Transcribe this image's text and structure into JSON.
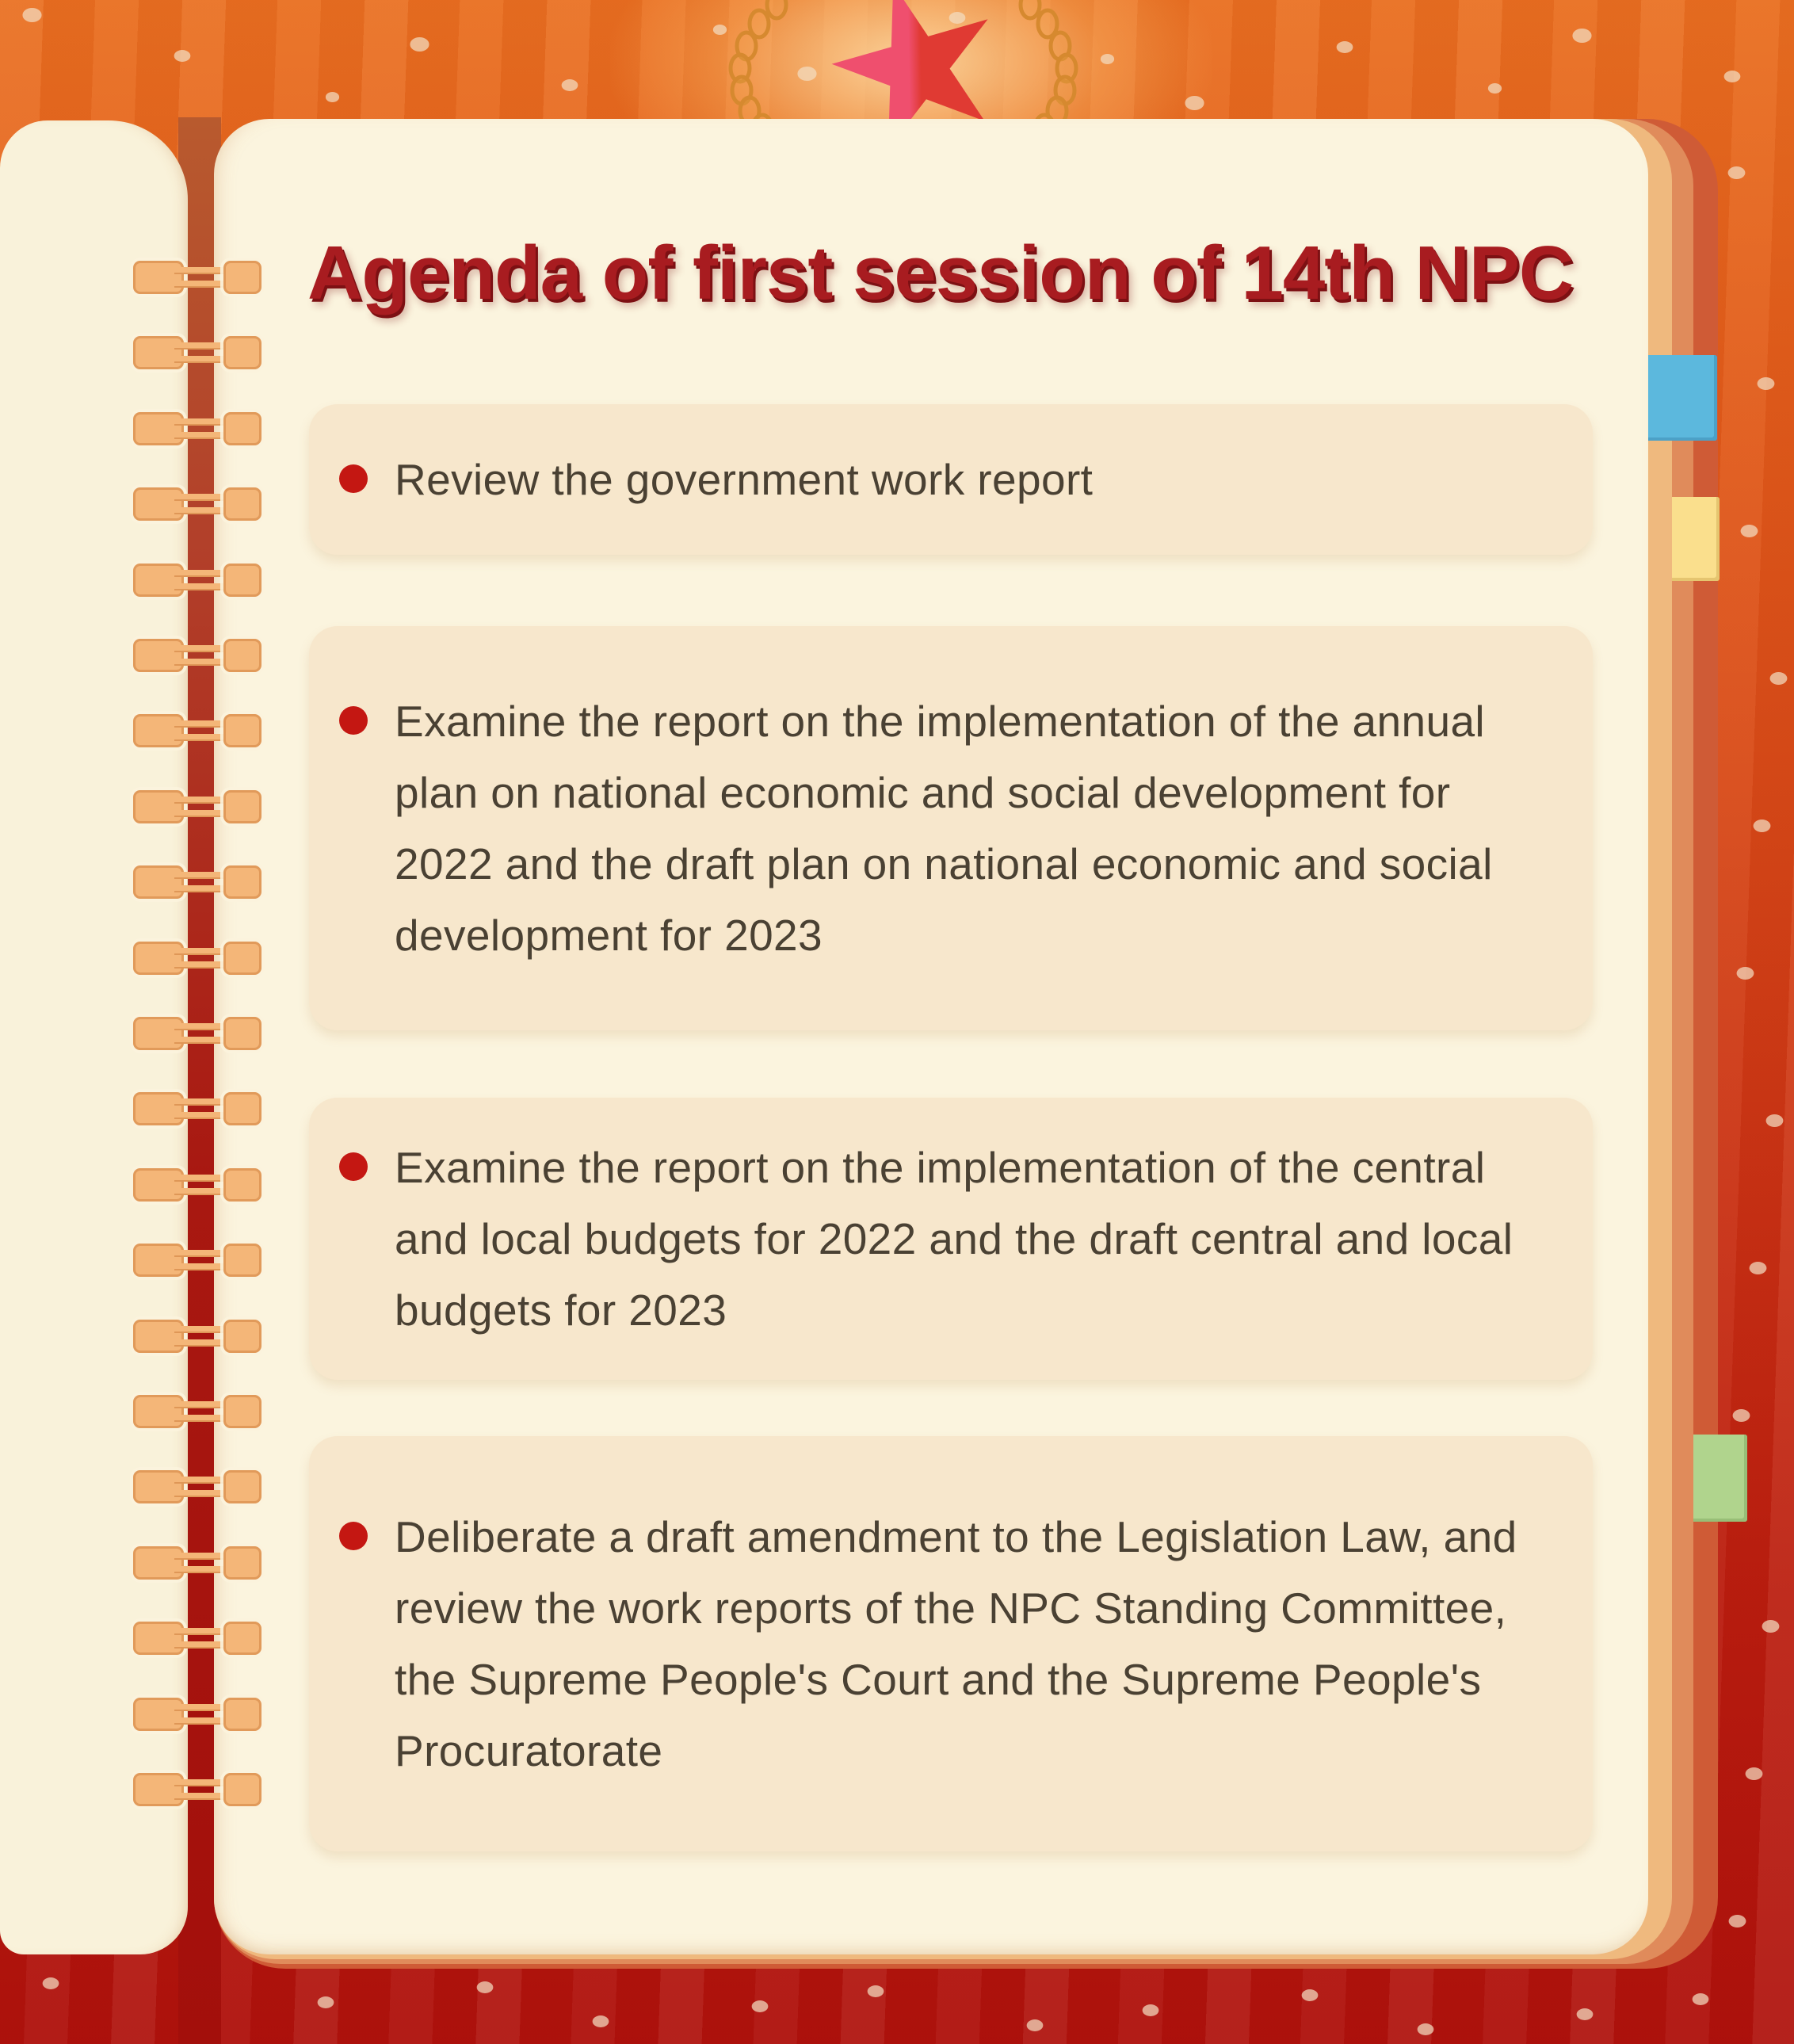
{
  "infographic": {
    "title": "Agenda of first session of 14th NPC",
    "agenda_items": [
      "Review the government work report",
      "Examine the report on the implementation of the annual plan on national economic and social development for 2022 and the draft plan on national economic and social development for 2023",
      "Examine the report on the implementation of the central and local budgets for 2022 and the draft central and local budgets for 2023",
      "Deliberate a draft amendment to the Legislation Law, and review the work reports of the NPC Standing Committee, the Supreme People's Court and the Supreme People's Procuratorate"
    ],
    "colors": {
      "background_top": "#e96f21",
      "background_bottom": "#ae100c",
      "page_cream": "#fbf4de",
      "card_peach": "#f7e7cc",
      "title_red": "#a81c20",
      "bullet_red": "#c41712",
      "body_text": "#4a4133",
      "binding_coil": "#f4b678",
      "tab_blue": "#5cb8dd",
      "tab_yellow": "#fadf8d",
      "tab_green": "#b0d48d",
      "star_red": "#ef4f6e"
    }
  }
}
